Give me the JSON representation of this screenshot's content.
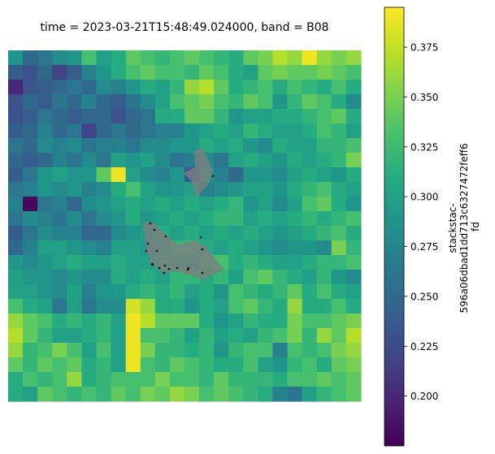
{
  "chart_data": {
    "type": "heatmap",
    "title": "time = 2023-03-21T15:48:49.024000, band = B08",
    "colorbar": {
      "label_lines": [
        "stackstac-",
        "596a06dbad1dd713c6327472feff6",
        "fd"
      ],
      "vmin": 0.175,
      "vmax": 0.395,
      "ticks": [
        0.2,
        0.225,
        0.25,
        0.275,
        0.3,
        0.325,
        0.35,
        0.375
      ],
      "tick_labels": [
        "0.200",
        "0.225",
        "0.250",
        "0.275",
        "0.300",
        "0.325",
        "0.350",
        "0.375"
      ],
      "colormap": "viridis"
    },
    "grid_rows": 24,
    "grid_cols": 24,
    "values": [
      [
        0.29,
        0.25,
        0.26,
        0.28,
        0.29,
        0.33,
        0.3,
        0.31,
        0.34,
        0.33,
        0.32,
        0.33,
        0.34,
        0.33,
        0.32,
        0.31,
        0.34,
        0.35,
        0.37,
        0.36,
        0.39,
        0.36,
        0.35,
        0.36
      ],
      [
        0.24,
        0.23,
        0.25,
        0.22,
        0.24,
        0.27,
        0.29,
        0.31,
        0.33,
        0.34,
        0.33,
        0.33,
        0.32,
        0.34,
        0.33,
        0.31,
        0.3,
        0.34,
        0.35,
        0.34,
        0.34,
        0.35,
        0.34,
        0.33
      ],
      [
        0.2,
        0.23,
        0.24,
        0.25,
        0.26,
        0.25,
        0.28,
        0.27,
        0.29,
        0.31,
        0.3,
        0.32,
        0.36,
        0.37,
        0.34,
        0.31,
        0.32,
        0.33,
        0.31,
        0.33,
        0.32,
        0.31,
        0.33,
        0.31
      ],
      [
        0.23,
        0.25,
        0.24,
        0.26,
        0.25,
        0.27,
        0.25,
        0.24,
        0.26,
        0.28,
        0.3,
        0.33,
        0.34,
        0.35,
        0.33,
        0.32,
        0.34,
        0.33,
        0.29,
        0.32,
        0.34,
        0.33,
        0.31,
        0.28
      ],
      [
        0.23,
        0.24,
        0.26,
        0.25,
        0.24,
        0.25,
        0.25,
        0.23,
        0.25,
        0.26,
        0.31,
        0.31,
        0.34,
        0.34,
        0.32,
        0.29,
        0.3,
        0.3,
        0.31,
        0.31,
        0.32,
        0.33,
        0.34,
        0.31
      ],
      [
        0.24,
        0.25,
        0.27,
        0.25,
        0.26,
        0.22,
        0.25,
        0.26,
        0.25,
        0.26,
        0.27,
        0.27,
        0.29,
        0.3,
        0.31,
        0.3,
        0.32,
        0.31,
        0.3,
        0.3,
        0.31,
        0.33,
        0.32,
        0.3
      ],
      [
        0.26,
        0.25,
        0.28,
        0.27,
        0.28,
        0.26,
        0.27,
        0.27,
        0.26,
        0.28,
        0.28,
        0.29,
        0.29,
        0.31,
        0.3,
        0.31,
        0.29,
        0.28,
        0.31,
        0.3,
        0.3,
        0.32,
        0.32,
        0.33
      ],
      [
        0.25,
        0.24,
        0.25,
        0.27,
        0.26,
        0.28,
        0.26,
        0.3,
        0.29,
        0.3,
        0.28,
        0.26,
        0.27,
        0.28,
        0.26,
        0.3,
        0.31,
        0.3,
        0.29,
        0.31,
        0.3,
        0.31,
        0.32,
        0.35
      ],
      [
        0.24,
        0.26,
        0.29,
        0.3,
        0.29,
        0.29,
        0.34,
        0.39,
        0.3,
        0.28,
        0.27,
        0.29,
        0.24,
        0.29,
        0.27,
        0.25,
        0.29,
        0.29,
        0.28,
        0.3,
        0.31,
        0.3,
        0.29,
        0.31
      ],
      [
        0.26,
        0.27,
        0.29,
        0.28,
        0.29,
        0.27,
        0.28,
        0.31,
        0.33,
        0.3,
        0.29,
        0.29,
        0.3,
        0.27,
        0.28,
        0.29,
        0.3,
        0.3,
        0.29,
        0.31,
        0.32,
        0.33,
        0.31,
        0.3
      ],
      [
        0.27,
        0.18,
        0.26,
        0.27,
        0.25,
        0.28,
        0.29,
        0.3,
        0.31,
        0.3,
        0.31,
        0.3,
        0.31,
        0.3,
        0.31,
        0.32,
        0.29,
        0.3,
        0.28,
        0.3,
        0.33,
        0.34,
        0.31,
        0.29
      ],
      [
        0.26,
        0.28,
        0.27,
        0.26,
        0.28,
        0.26,
        0.28,
        0.29,
        0.31,
        0.29,
        0.3,
        0.31,
        0.3,
        0.31,
        0.32,
        0.32,
        0.3,
        0.31,
        0.3,
        0.31,
        0.32,
        0.31,
        0.32,
        0.33
      ],
      [
        0.24,
        0.26,
        0.28,
        0.27,
        0.27,
        0.25,
        0.25,
        0.28,
        0.29,
        0.3,
        0.31,
        0.3,
        0.31,
        0.3,
        0.31,
        0.3,
        0.31,
        0.3,
        0.29,
        0.3,
        0.31,
        0.32,
        0.33,
        0.31
      ],
      [
        0.25,
        0.27,
        0.3,
        0.3,
        0.29,
        0.28,
        0.27,
        0.3,
        0.3,
        0.29,
        0.3,
        0.32,
        0.32,
        0.31,
        0.3,
        0.31,
        0.3,
        0.29,
        0.28,
        0.29,
        0.29,
        0.28,
        0.35,
        0.32
      ],
      [
        0.29,
        0.28,
        0.29,
        0.3,
        0.31,
        0.3,
        0.3,
        0.31,
        0.3,
        0.3,
        0.31,
        0.31,
        0.3,
        0.32,
        0.33,
        0.31,
        0.32,
        0.31,
        0.3,
        0.3,
        0.31,
        0.32,
        0.32,
        0.33
      ],
      [
        0.3,
        0.29,
        0.29,
        0.28,
        0.29,
        0.28,
        0.28,
        0.31,
        0.3,
        0.31,
        0.3,
        0.32,
        0.32,
        0.31,
        0.32,
        0.3,
        0.33,
        0.34,
        0.32,
        0.31,
        0.3,
        0.32,
        0.29,
        0.28
      ],
      [
        0.3,
        0.3,
        0.29,
        0.28,
        0.3,
        0.27,
        0.29,
        0.29,
        0.31,
        0.32,
        0.31,
        0.32,
        0.3,
        0.31,
        0.29,
        0.33,
        0.32,
        0.31,
        0.32,
        0.34,
        0.31,
        0.33,
        0.31,
        0.3
      ],
      [
        0.33,
        0.31,
        0.3,
        0.26,
        0.3,
        0.26,
        0.28,
        0.28,
        0.38,
        0.36,
        0.31,
        0.31,
        0.29,
        0.31,
        0.3,
        0.33,
        0.34,
        0.32,
        0.31,
        0.36,
        0.31,
        0.31,
        0.33,
        0.31
      ],
      [
        0.36,
        0.34,
        0.33,
        0.31,
        0.32,
        0.31,
        0.32,
        0.3,
        0.39,
        0.37,
        0.34,
        0.34,
        0.34,
        0.31,
        0.29,
        0.3,
        0.32,
        0.31,
        0.31,
        0.35,
        0.33,
        0.33,
        0.34,
        0.35
      ],
      [
        0.37,
        0.34,
        0.32,
        0.3,
        0.3,
        0.31,
        0.32,
        0.3,
        0.39,
        0.33,
        0.33,
        0.32,
        0.3,
        0.32,
        0.3,
        0.31,
        0.3,
        0.32,
        0.33,
        0.35,
        0.32,
        0.36,
        0.34,
        0.37
      ],
      [
        0.36,
        0.32,
        0.33,
        0.35,
        0.33,
        0.3,
        0.33,
        0.3,
        0.39,
        0.35,
        0.32,
        0.32,
        0.31,
        0.32,
        0.29,
        0.32,
        0.33,
        0.33,
        0.27,
        0.33,
        0.32,
        0.33,
        0.35,
        0.36
      ],
      [
        0.34,
        0.32,
        0.34,
        0.33,
        0.34,
        0.31,
        0.32,
        0.3,
        0.39,
        0.33,
        0.32,
        0.34,
        0.33,
        0.32,
        0.31,
        0.31,
        0.33,
        0.3,
        0.29,
        0.32,
        0.33,
        0.31,
        0.34,
        0.35
      ],
      [
        0.31,
        0.33,
        0.32,
        0.33,
        0.36,
        0.31,
        0.32,
        0.33,
        0.33,
        0.33,
        0.35,
        0.33,
        0.33,
        0.32,
        0.34,
        0.32,
        0.32,
        0.32,
        0.31,
        0.33,
        0.33,
        0.34,
        0.33,
        0.34
      ],
      [
        0.31,
        0.3,
        0.34,
        0.33,
        0.32,
        0.33,
        0.32,
        0.34,
        0.33,
        0.35,
        0.34,
        0.36,
        0.35,
        0.33,
        0.34,
        0.33,
        0.32,
        0.31,
        0.27,
        0.26,
        0.3,
        0.32,
        0.33,
        0.34
      ]
    ],
    "overlay": {
      "fill_color": "#7f7f7f",
      "fill_opacity": 0.78,
      "point_color": "#000000"
    }
  }
}
